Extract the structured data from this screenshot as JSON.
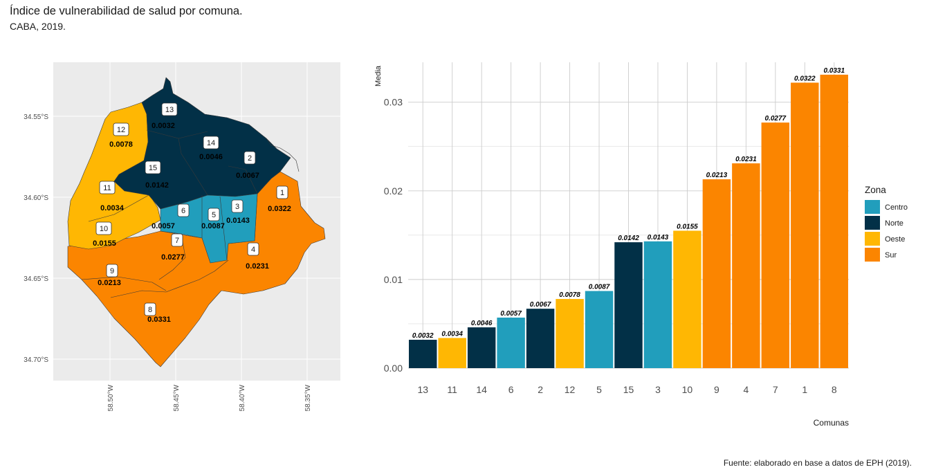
{
  "header": {
    "title": "Índice de vulnerabilidad de salud por comuna.",
    "subtitle": "CABA, 2019."
  },
  "caption": "Fuente: elaborado en base a datos de EPH (2019).",
  "colors": {
    "Centro": "#219ebc",
    "Norte": "#023047",
    "Oeste": "#ffb703",
    "Sur": "#fb8500",
    "panel_bg": "#ebebeb",
    "grid": "#ffffff"
  },
  "map": {
    "y_ticks": [
      "34.55°S",
      "34.60°S",
      "34.65°S",
      "34.70°S"
    ],
    "x_ticks": [
      "58.50°W",
      "58.45°W",
      "58.40°W",
      "58.35°W"
    ],
    "comunas": [
      {
        "comuna": "13",
        "value": "0.0032",
        "zona": "Norte"
      },
      {
        "comuna": "12",
        "value": "0.0078",
        "zona": "Oeste"
      },
      {
        "comuna": "14",
        "value": "0.0046",
        "zona": "Norte"
      },
      {
        "comuna": "2",
        "value": "0.0067",
        "zona": "Norte"
      },
      {
        "comuna": "15",
        "value": "0.0142",
        "zona": "Norte"
      },
      {
        "comuna": "11",
        "value": "0.0034",
        "zona": "Oeste"
      },
      {
        "comuna": "1",
        "value": "0.0322",
        "zona": "Sur"
      },
      {
        "comuna": "6",
        "value": "0.0057",
        "zona": "Centro"
      },
      {
        "comuna": "5",
        "value": "0.0087",
        "zona": "Centro"
      },
      {
        "comuna": "3",
        "value": "0.0143",
        "zona": "Centro"
      },
      {
        "comuna": "10",
        "value": "0.0155",
        "zona": "Oeste"
      },
      {
        "comuna": "7",
        "value": "0.0277",
        "zona": "Sur"
      },
      {
        "comuna": "4",
        "value": "0.0231",
        "zona": "Sur"
      },
      {
        "comuna": "9",
        "value": "0.0213",
        "zona": "Sur"
      },
      {
        "comuna": "8",
        "value": "0.0331",
        "zona": "Sur"
      }
    ]
  },
  "chart_data": {
    "type": "bar",
    "categories": [
      "13",
      "11",
      "14",
      "6",
      "2",
      "12",
      "5",
      "15",
      "3",
      "10",
      "9",
      "4",
      "7",
      "1",
      "8"
    ],
    "values": [
      0.0032,
      0.0034,
      0.0046,
      0.0057,
      0.0067,
      0.0078,
      0.0087,
      0.0142,
      0.0143,
      0.0155,
      0.0213,
      0.0231,
      0.0277,
      0.0322,
      0.0331
    ],
    "labels": [
      "0.0032",
      "0.0034",
      "0.0046",
      "0.0057",
      "0.0067",
      "0.0078",
      "0.0087",
      "0.0142",
      "0.0143",
      "0.0155",
      "0.0213",
      "0.0231",
      "0.0277",
      "0.0322",
      "0.0331"
    ],
    "zona": [
      "Norte",
      "Oeste",
      "Norte",
      "Centro",
      "Norte",
      "Oeste",
      "Centro",
      "Norte",
      "Centro",
      "Oeste",
      "Sur",
      "Sur",
      "Sur",
      "Sur",
      "Sur"
    ],
    "xlabel": "Comunas",
    "ylabel": "Media",
    "ylim": [
      0,
      0.0345
    ],
    "y_ticks": [
      0,
      0.01,
      0.02,
      0.03
    ],
    "y_tick_labels": [
      "0.00",
      "0.01",
      "0.02",
      "0.03"
    ],
    "grid": true,
    "legend": {
      "title": "Zona",
      "position": "right",
      "entries": [
        "Centro",
        "Norte",
        "Oeste",
        "Sur"
      ]
    }
  }
}
